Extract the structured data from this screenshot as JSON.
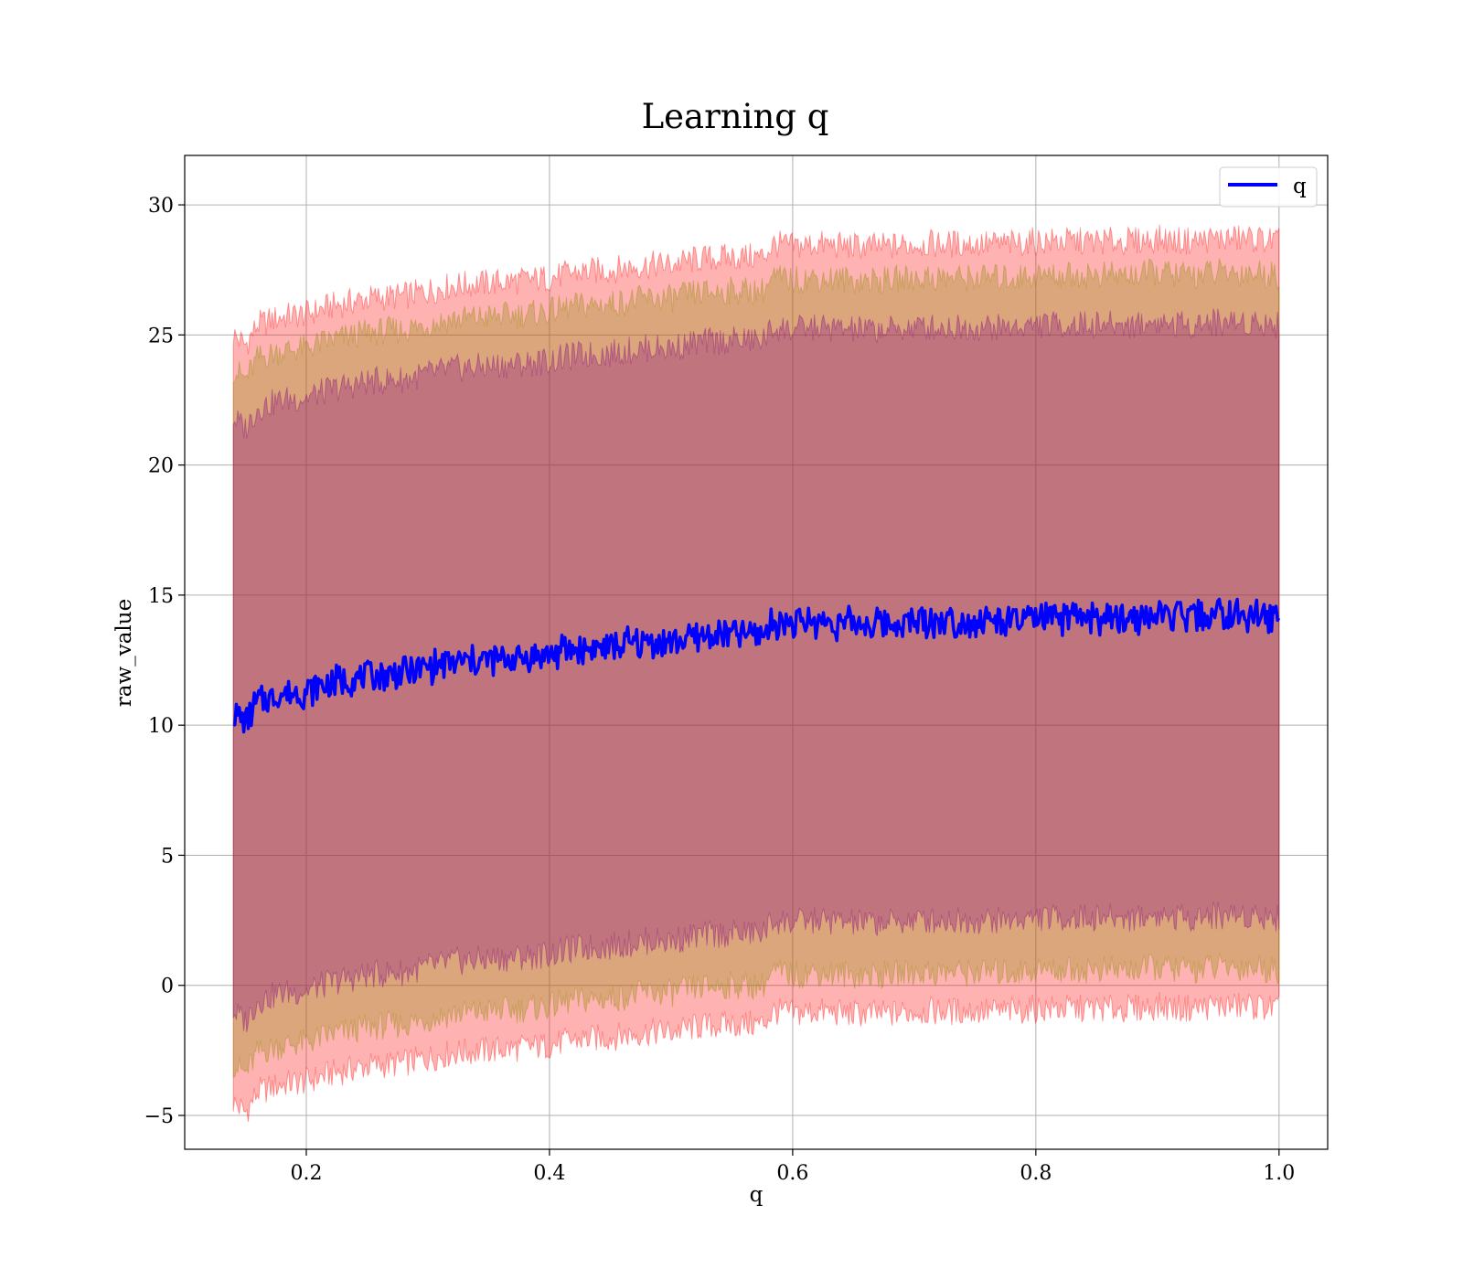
{
  "chart_data": {
    "type": "line",
    "title": "Learning q",
    "xlabel": "q",
    "ylabel": "raw_value",
    "xlim": [
      0.1,
      1.04
    ],
    "ylim": [
      -6.3,
      31.9
    ],
    "xticks": [
      0.2,
      0.4,
      0.6,
      0.8,
      1.0
    ],
    "xtick_labels": [
      "0.2",
      "0.4",
      "0.6",
      "0.8",
      "1.0"
    ],
    "yticks": [
      -5,
      0,
      5,
      10,
      15,
      20,
      25,
      30
    ],
    "ytick_labels": [
      "−5",
      "0",
      "5",
      "10",
      "15",
      "20",
      "25",
      "30"
    ],
    "grid": true,
    "legend": {
      "position": "upper-right",
      "entries": [
        "q"
      ]
    },
    "colors": {
      "line": "#0000ff",
      "band_outer": "#ff0000",
      "band_middle": "#8b8b00",
      "band_inner": "#800080",
      "grid": "#b0b0b0",
      "axes": "#000000"
    },
    "x": [
      0.14,
      0.15,
      0.16,
      0.18,
      0.2,
      0.22,
      0.25,
      0.28,
      0.3,
      0.32,
      0.35,
      0.38,
      0.4,
      0.42,
      0.45,
      0.48,
      0.5,
      0.52,
      0.55,
      0.575,
      0.585,
      0.6,
      0.62,
      0.65,
      0.68,
      0.7,
      0.72,
      0.75,
      0.78,
      0.8,
      0.82,
      0.85,
      0.88,
      0.9,
      0.92,
      0.95,
      0.98,
      1.0
    ],
    "series": [
      {
        "name": "q",
        "y": [
          10.5,
          10.1,
          10.9,
          11.2,
          11.3,
          11.6,
          11.9,
          12.0,
          12.2,
          12.4,
          12.5,
          12.6,
          12.7,
          12.9,
          13.0,
          13.2,
          13.2,
          13.4,
          13.5,
          13.5,
          14.0,
          13.9,
          14.0,
          13.9,
          13.9,
          14.0,
          14.0,
          14.0,
          14.0,
          14.1,
          14.1,
          14.1,
          14.1,
          14.2,
          14.1,
          14.2,
          14.2,
          14.1
        ]
      }
    ],
    "bands": [
      {
        "lower_offset": -15.0,
        "upper_offset": 14.5,
        "fill_opacity": 0.3
      },
      {
        "lower_offset": -13.5,
        "upper_offset": 13.2,
        "fill_opacity": 0.3
      },
      {
        "lower_offset": -11.5,
        "upper_offset": 11.3,
        "fill_opacity": 0.3
      }
    ]
  }
}
